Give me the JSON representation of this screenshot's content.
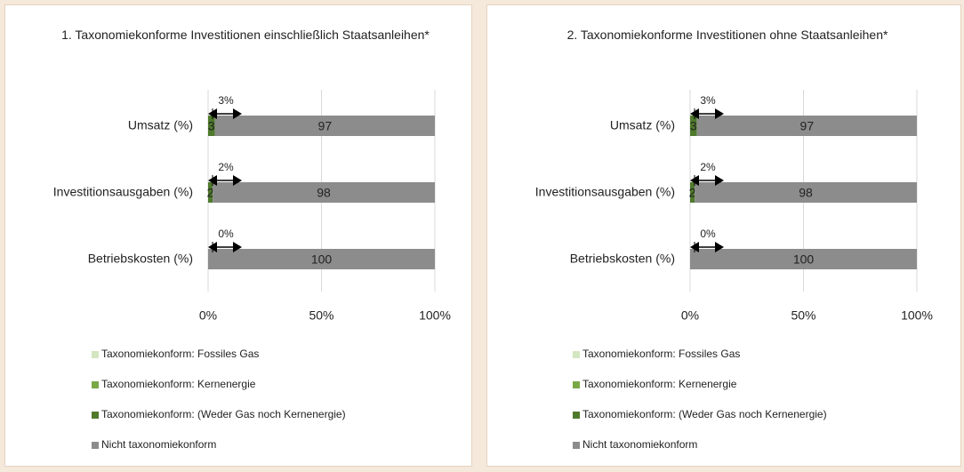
{
  "chart_data": [
    {
      "type": "stacked-bar-horizontal",
      "title": "1. Taxonomiekonforme Investitionen einschließlich Staatsanleihen*",
      "categories": [
        "Umsatz (%)",
        "Investitionsausgaben (%)",
        "Betriebskosten (%)"
      ],
      "series": [
        {
          "name": "Taxonomiekonform: Fossiles Gas",
          "color": "#d3e6c1",
          "values": [
            0,
            0,
            0
          ]
        },
        {
          "name": "Taxonomiekonform: Kernenergie",
          "color": "#7aa846",
          "values": [
            0,
            0,
            0
          ]
        },
        {
          "name": "Taxonomiekonform: (Weder Gas noch Kernenergie)",
          "color": "#4f7a2c",
          "values": [
            3,
            2,
            0
          ]
        },
        {
          "name": "Nicht taxonomiekonform",
          "color": "#8c8c8c",
          "values": [
            97,
            98,
            100
          ]
        }
      ],
      "annotations": [
        "3%",
        "2%",
        "0%"
      ],
      "xlim": [
        0,
        100
      ],
      "xticks": [
        {
          "value": 0,
          "label": "0%"
        },
        {
          "value": 50,
          "label": "50%"
        },
        {
          "value": 100,
          "label": "100%"
        }
      ],
      "grid": true
    },
    {
      "type": "stacked-bar-horizontal",
      "title": "2. Taxonomiekonforme Investitionen ohne Staatsanleihen*",
      "categories": [
        "Umsatz (%)",
        "Investitionsausgaben (%)",
        "Betriebskosten (%)"
      ],
      "series": [
        {
          "name": "Taxonomiekonform: Fossiles Gas",
          "color": "#d3e6c1",
          "values": [
            0,
            0,
            0
          ]
        },
        {
          "name": "Taxonomiekonform: Kernenergie",
          "color": "#7aa846",
          "values": [
            0,
            0,
            0
          ]
        },
        {
          "name": "Taxonomiekonform: (Weder Gas noch Kernenergie)",
          "color": "#4f7a2c",
          "values": [
            3,
            2,
            0
          ]
        },
        {
          "name": "Nicht taxonomiekonform",
          "color": "#8c8c8c",
          "values": [
            97,
            98,
            100
          ]
        }
      ],
      "annotations": [
        "3%",
        "2%",
        "0%"
      ],
      "xlim": [
        0,
        100
      ],
      "xticks": [
        {
          "value": 0,
          "label": "0%"
        },
        {
          "value": 50,
          "label": "50%"
        },
        {
          "value": 100,
          "label": "100%"
        }
      ],
      "grid": true
    }
  ]
}
